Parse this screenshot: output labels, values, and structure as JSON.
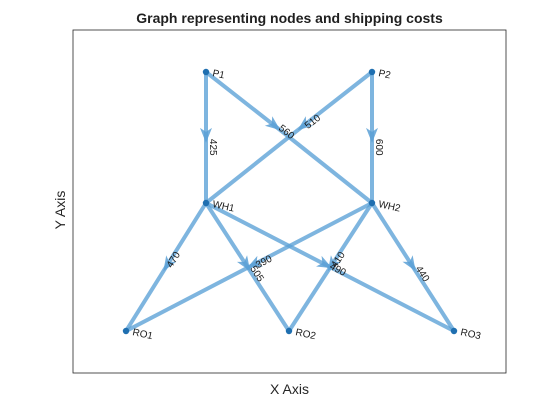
{
  "title": "Graph representing nodes and shipping costs",
  "xlabel": "X Axis",
  "ylabel": "Y Axis",
  "colors": {
    "edge": "#5aa0d6",
    "node": "#1f6fb0",
    "axes": "#262626"
  },
  "chart_data": {
    "type": "directed-graph",
    "title": "Graph representing nodes and shipping costs",
    "xlabel": "X Axis",
    "ylabel": "Y Axis",
    "nodes": [
      {
        "id": "P1",
        "label": "P1"
      },
      {
        "id": "P2",
        "label": "P2"
      },
      {
        "id": "X",
        "label": ""
      },
      {
        "id": "WH1",
        "label": "WH1"
      },
      {
        "id": "WH2",
        "label": "WH2"
      },
      {
        "id": "RO1",
        "label": "RO1"
      },
      {
        "id": "RO2",
        "label": "RO2"
      },
      {
        "id": "RO3",
        "label": "RO3"
      }
    ],
    "edges": [
      {
        "from": "P1",
        "to": "WH1",
        "label": "425"
      },
      {
        "from": "P1",
        "to": "WH2",
        "label": "560"
      },
      {
        "from": "P2",
        "to": "WH1",
        "label": "510"
      },
      {
        "from": "P2",
        "to": "WH2",
        "label": "600"
      },
      {
        "from": "WH1",
        "to": "RO1",
        "label": "470"
      },
      {
        "from": "WH1",
        "to": "RO2",
        "label": "505"
      },
      {
        "from": "WH1",
        "to": "RO3",
        "label": "490"
      },
      {
        "from": "WH2",
        "to": "RO1",
        "label": "390"
      },
      {
        "from": "WH2",
        "to": "RO2",
        "label": "410"
      },
      {
        "from": "WH2",
        "to": "RO3",
        "label": "440"
      }
    ]
  }
}
